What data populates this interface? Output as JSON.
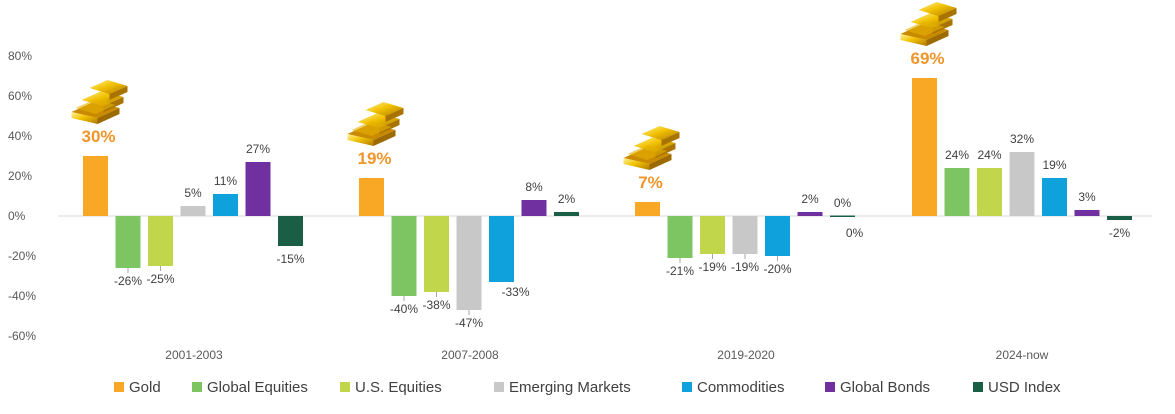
{
  "chart_data": {
    "type": "bar",
    "categories": [
      "2001-2003",
      "2007-2008",
      "2019-2020",
      "2024-now"
    ],
    "series": [
      {
        "name": "Gold",
        "values": [
          30,
          19,
          7,
          69
        ],
        "color": "#f9a825"
      },
      {
        "name": "Global Equities",
        "values": [
          -26,
          -40,
          -21,
          24
        ],
        "color": "#7dc463"
      },
      {
        "name": "U.S. Equities",
        "values": [
          -25,
          -38,
          -19,
          24
        ],
        "color": "#c1d64a"
      },
      {
        "name": "Emerging Markets",
        "values": [
          5,
          -47,
          -19,
          32
        ],
        "color": "#c8c8c8"
      },
      {
        "name": "Commodities",
        "values": [
          11,
          -33,
          -20,
          19
        ],
        "color": "#0ea1dc"
      },
      {
        "name": "Global Bonds",
        "values": [
          27,
          8,
          2,
          3
        ],
        "color": "#7030a0"
      },
      {
        "name": "USD Index",
        "values": [
          -15,
          2,
          0,
          -2
        ],
        "color": "#1a5e45"
      }
    ],
    "data_labels": [
      [
        "30%",
        "-26%",
        "-25%",
        "5%",
        "11%",
        "27%",
        "-15%"
      ],
      [
        "19%",
        "-40%",
        "-38%",
        "-47%",
        "-33%",
        "8%",
        "2%"
      ],
      [
        "7%",
        "-21%",
        "-19%",
        "-19%",
        "-20%",
        "2%",
        "0%"
      ],
      [
        "69%",
        "24%",
        "24%",
        "32%",
        "19%",
        "3%",
        "-2%"
      ]
    ],
    "yticks": [
      "80%",
      "60%",
      "40%",
      "20%",
      "0%",
      "-20%",
      "-40%",
      "-60%"
    ],
    "ylim": [
      -60,
      80
    ],
    "legend_position": "bottom",
    "grid": false,
    "decoration": "gold-bars-icon"
  }
}
